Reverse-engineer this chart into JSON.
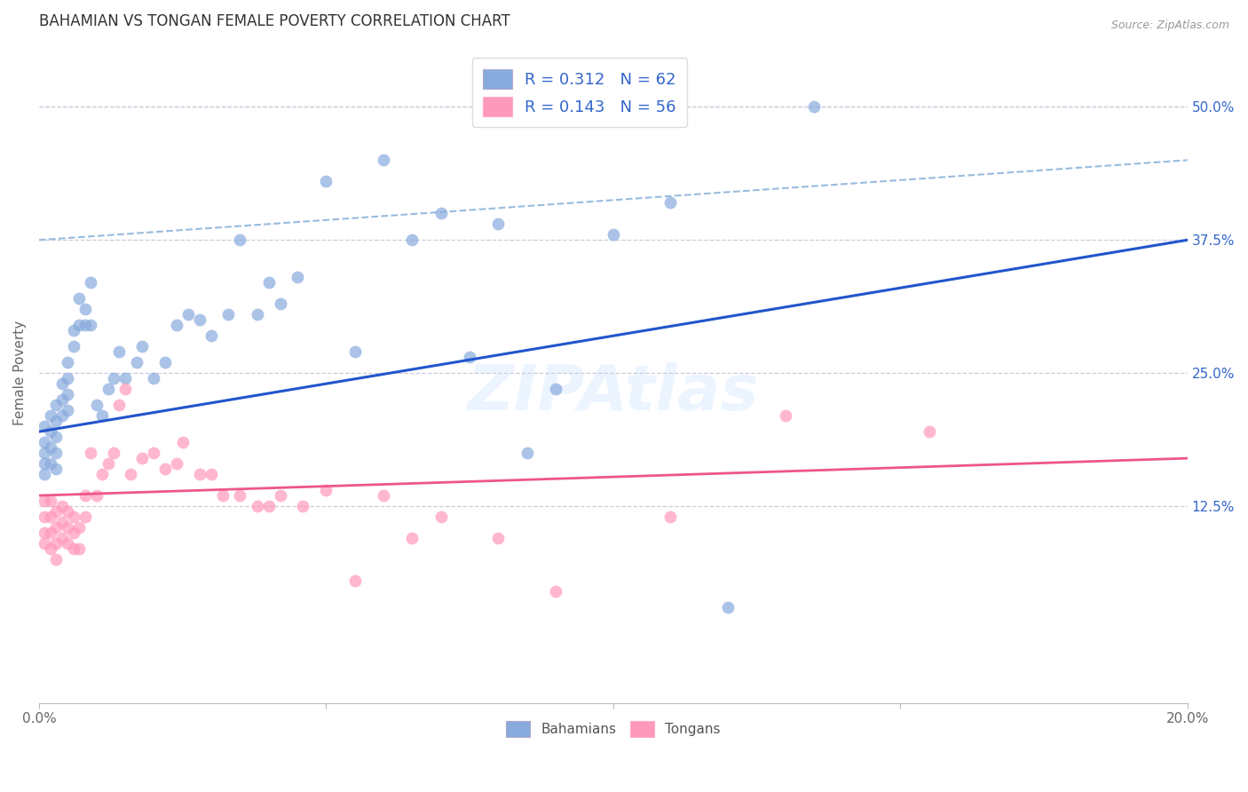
{
  "title": "BAHAMIAN VS TONGAN FEMALE POVERTY CORRELATION CHART",
  "source": "Source: ZipAtlas.com",
  "ylabel": "Female Poverty",
  "right_yticks": [
    "50.0%",
    "37.5%",
    "25.0%",
    "12.5%"
  ],
  "right_ytick_vals": [
    0.5,
    0.375,
    0.25,
    0.125
  ],
  "xlim": [
    0.0,
    0.2
  ],
  "ylim": [
    -0.06,
    0.56
  ],
  "bahamian_R": 0.312,
  "bahamian_N": 62,
  "tongan_R": 0.143,
  "tongan_N": 56,
  "blue_scatter_color": "#88AADD",
  "pink_scatter_color": "#FF99BB",
  "blue_line_color": "#2255CC",
  "pink_line_color": "#EE5588",
  "dashed_line_color": "#99BBDD",
  "legend_text_color": "#3366CC",
  "grid_color": "#CCCCDD",
  "background_color": "#FFFFFF",
  "bahamian_x": [
    0.001,
    0.001,
    0.001,
    0.001,
    0.001,
    0.002,
    0.002,
    0.002,
    0.002,
    0.003,
    0.003,
    0.003,
    0.003,
    0.003,
    0.004,
    0.004,
    0.004,
    0.005,
    0.005,
    0.005,
    0.005,
    0.006,
    0.006,
    0.007,
    0.007,
    0.008,
    0.008,
    0.009,
    0.009,
    0.01,
    0.011,
    0.012,
    0.013,
    0.014,
    0.015,
    0.017,
    0.018,
    0.02,
    0.022,
    0.024,
    0.026,
    0.028,
    0.03,
    0.033,
    0.035,
    0.038,
    0.04,
    0.042,
    0.045,
    0.05,
    0.055,
    0.06,
    0.065,
    0.07,
    0.075,
    0.08,
    0.085,
    0.09,
    0.1,
    0.11,
    0.12,
    0.135
  ],
  "bahamian_y": [
    0.2,
    0.185,
    0.175,
    0.165,
    0.155,
    0.21,
    0.195,
    0.18,
    0.165,
    0.22,
    0.205,
    0.19,
    0.175,
    0.16,
    0.24,
    0.225,
    0.21,
    0.26,
    0.245,
    0.23,
    0.215,
    0.29,
    0.275,
    0.32,
    0.295,
    0.31,
    0.295,
    0.335,
    0.295,
    0.22,
    0.21,
    0.235,
    0.245,
    0.27,
    0.245,
    0.26,
    0.275,
    0.245,
    0.26,
    0.295,
    0.305,
    0.3,
    0.285,
    0.305,
    0.375,
    0.305,
    0.335,
    0.315,
    0.34,
    0.43,
    0.27,
    0.45,
    0.375,
    0.4,
    0.265,
    0.39,
    0.175,
    0.235,
    0.38,
    0.41,
    0.03,
    0.5
  ],
  "tongan_x": [
    0.001,
    0.001,
    0.001,
    0.001,
    0.002,
    0.002,
    0.002,
    0.002,
    0.003,
    0.003,
    0.003,
    0.003,
    0.004,
    0.004,
    0.004,
    0.005,
    0.005,
    0.005,
    0.006,
    0.006,
    0.006,
    0.007,
    0.007,
    0.008,
    0.008,
    0.009,
    0.01,
    0.011,
    0.012,
    0.013,
    0.014,
    0.015,
    0.016,
    0.018,
    0.02,
    0.022,
    0.024,
    0.025,
    0.028,
    0.03,
    0.032,
    0.035,
    0.038,
    0.04,
    0.042,
    0.046,
    0.05,
    0.055,
    0.06,
    0.065,
    0.07,
    0.08,
    0.09,
    0.11,
    0.13,
    0.155
  ],
  "tongan_y": [
    0.13,
    0.115,
    0.1,
    0.09,
    0.13,
    0.115,
    0.1,
    0.085,
    0.12,
    0.105,
    0.09,
    0.075,
    0.125,
    0.11,
    0.095,
    0.12,
    0.105,
    0.09,
    0.115,
    0.1,
    0.085,
    0.105,
    0.085,
    0.135,
    0.115,
    0.175,
    0.135,
    0.155,
    0.165,
    0.175,
    0.22,
    0.235,
    0.155,
    0.17,
    0.175,
    0.16,
    0.165,
    0.185,
    0.155,
    0.155,
    0.135,
    0.135,
    0.125,
    0.125,
    0.135,
    0.125,
    0.14,
    0.055,
    0.135,
    0.095,
    0.115,
    0.095,
    0.045,
    0.115,
    0.21,
    0.195
  ],
  "blue_trend": [
    0.0,
    0.2,
    0.195,
    0.375
  ],
  "pink_trend": [
    0.0,
    0.2,
    0.135,
    0.17
  ],
  "dashed_line": [
    0.0,
    0.2,
    0.375,
    0.45
  ],
  "bottom_legend_labels": [
    "Bahamians",
    "Tongans"
  ]
}
